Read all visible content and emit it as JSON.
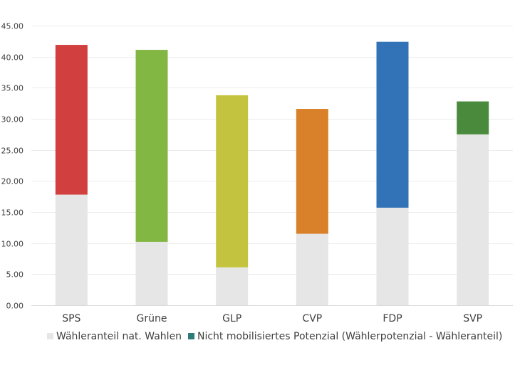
{
  "chart_data": {
    "type": "bar",
    "stacked": true,
    "categories": [
      "SPS",
      "Grüne",
      "GLP",
      "CVP",
      "FDP",
      "SVP"
    ],
    "series": [
      {
        "name": "Wähleranteil nat. Wahlen",
        "values": [
          17.8,
          10.2,
          6.1,
          11.5,
          15.7,
          27.5
        ],
        "color": "#e6e6e6"
      },
      {
        "name": "Nicht mobilisiertes Potenzial (Wählerpotenzial - Wähleranteil)",
        "values": [
          24.1,
          30.9,
          27.7,
          20.1,
          26.7,
          5.3
        ],
        "colors": [
          "#d13f3f",
          "#83b744",
          "#c4c33f",
          "#d9812a",
          "#3273b7",
          "#4a8a3d"
        ],
        "legend_color": "#2e7b7b"
      }
    ],
    "ylim": [
      0,
      45
    ],
    "yticks": [
      "0.00",
      "5.00",
      "10.00",
      "15.00",
      "20.00",
      "25.00",
      "30.00",
      "35.00",
      "40.00",
      "45.00"
    ],
    "grid": true,
    "legend_position": "bottom"
  }
}
